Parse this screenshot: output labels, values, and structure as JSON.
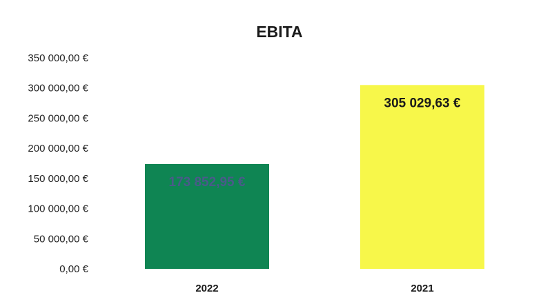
{
  "chart_data": {
    "type": "bar",
    "title": "EBITA",
    "xlabel": "",
    "ylabel": "",
    "categories": [
      "2022",
      "2021"
    ],
    "values": [
      173852.95,
      305029.63
    ],
    "data_labels": [
      "173 852,95 €",
      "305 029,63 €"
    ],
    "colors": [
      "#0f8553",
      "#f7f74a"
    ],
    "label_colors": [
      "#4a5a8a",
      "#1a1a1a"
    ],
    "ylim": [
      0,
      350000
    ],
    "y_ticks": [
      0,
      50000,
      100000,
      150000,
      200000,
      250000,
      300000,
      350000
    ],
    "y_tick_labels": [
      "0,00 €",
      "50 000,00 €",
      "100 000,00 €",
      "150 000,00 €",
      "200 000,00 €",
      "250 000,00 €",
      "300 000,00 €",
      "350 000,00 €"
    ],
    "grid": false,
    "legend": "none"
  }
}
